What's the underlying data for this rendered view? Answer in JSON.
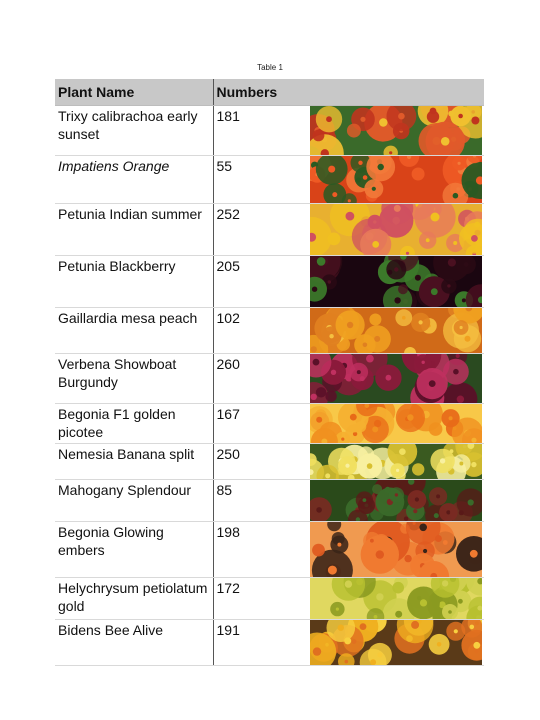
{
  "caption": "Table 1",
  "headers": {
    "name": "Plant Name",
    "numbers": "Numbers",
    "image": ""
  },
  "rows": [
    {
      "name": "Trixy calibrachoa early sunset",
      "number": "181",
      "italic": false,
      "photo": "red-orange-flowers-icon",
      "palette": [
        "#c0341e",
        "#e05a2a",
        "#f0c030",
        "#3a6a2a"
      ]
    },
    {
      "name": "Impatiens Orange",
      "number": "55",
      "italic": true,
      "photo": "orange-flowers-icon",
      "palette": [
        "#ee5a24",
        "#f27a3a",
        "#2a5a22",
        "#d94318"
      ]
    },
    {
      "name": "Petunia Indian summer",
      "number": "252",
      "italic": false,
      "photo": "salmon-yellow-flowers-icon",
      "palette": [
        "#e87a5a",
        "#f0c020",
        "#d05060",
        "#e8b030"
      ]
    },
    {
      "name": "Petunia Blackberry",
      "number": "205",
      "italic": false,
      "photo": "dark-purple-flowers-icon",
      "palette": [
        "#2a0a14",
        "#4a1020",
        "#3c7a2a",
        "#1a0610"
      ]
    },
    {
      "name": "Gaillardia mesa peach",
      "number": "102",
      "italic": false,
      "photo": "peach-flowers-icon",
      "palette": [
        "#f0a020",
        "#e08020",
        "#f5c040",
        "#d06a18"
      ]
    },
    {
      "name": "Verbena Showboat Burgundy",
      "number": "260",
      "italic": false,
      "photo": "burgundy-flowers-icon",
      "palette": [
        "#8a1a3a",
        "#c03060",
        "#5a1028",
        "#2a4a20"
      ]
    },
    {
      "name": "Begonia F1 golden picotee",
      "number": "167",
      "italic": false,
      "photo": "golden-flowers-icon",
      "palette": [
        "#f09020",
        "#f5b030",
        "#e86a18",
        "#f8c848"
      ]
    },
    {
      "name": "Nemesia Banana split",
      "number": "250",
      "italic": false,
      "photo": "yellow-white-flowers-icon",
      "palette": [
        "#f0e060",
        "#f8f0a0",
        "#d8c030",
        "#3a5a20"
      ]
    },
    {
      "name": "Mahogany Splendour",
      "number": "85",
      "italic": false,
      "photo": "mahogany-leaves-icon",
      "palette": [
        "#5a1a18",
        "#3a6a2a",
        "#7a2a22",
        "#2a4a1a"
      ]
    },
    {
      "name": "Begonia Glowing embers",
      "number": "198",
      "italic": false,
      "photo": "orange-embers-flowers-icon",
      "palette": [
        "#f07a30",
        "#e05a20",
        "#3a2418",
        "#f09a50"
      ]
    },
    {
      "name": "Helychrysum petiolatum gold",
      "number": "172",
      "italic": false,
      "photo": "gold-foliage-icon",
      "palette": [
        "#b8c030",
        "#d0d050",
        "#8a9a20",
        "#e0d860"
      ]
    },
    {
      "name": "Bidens Bee Alive",
      "number": "191",
      "italic": false,
      "photo": "yellow-orange-flowers-icon",
      "palette": [
        "#f0b020",
        "#e07020",
        "#f8d040",
        "#5a3a18"
      ]
    }
  ]
}
